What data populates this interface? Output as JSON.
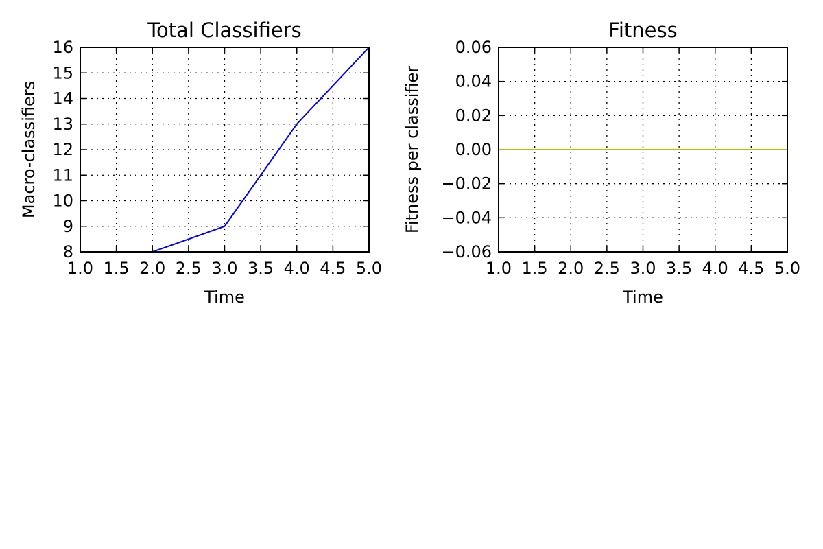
{
  "chart_data": [
    {
      "type": "line",
      "title": "Total Classifiers",
      "xlabel": "Time",
      "ylabel": "Macro-classifiers",
      "xlim": [
        1.0,
        5.0
      ],
      "ylim": [
        8,
        16
      ],
      "grid": true,
      "xticks": [
        "1.0",
        "1.5",
        "2.0",
        "2.5",
        "3.0",
        "3.5",
        "4.0",
        "4.5",
        "5.0"
      ],
      "yticks": [
        "8",
        "9",
        "10",
        "11",
        "12",
        "13",
        "14",
        "15",
        "16"
      ],
      "series": [
        {
          "color": "#0000ff",
          "x": [
            1,
            2,
            3,
            4,
            5
          ],
          "y": [
            8,
            8,
            9,
            13,
            16
          ]
        }
      ]
    },
    {
      "type": "line",
      "title": "Fitness",
      "xlabel": "Time",
      "ylabel": "Fitness per classifier",
      "xlim": [
        1.0,
        5.0
      ],
      "ylim": [
        -0.06,
        0.06
      ],
      "grid": true,
      "xticks": [
        "1.0",
        "1.5",
        "2.0",
        "2.5",
        "3.0",
        "3.5",
        "4.0",
        "4.5",
        "5.0"
      ],
      "yticks": [
        "−0.06",
        "−0.04",
        "−0.02",
        "0.00",
        "0.02",
        "0.04",
        "0.06"
      ],
      "series": [
        {
          "color": "#bfbf00",
          "x": [
            1,
            2,
            3,
            4,
            5
          ],
          "y": [
            0,
            0,
            0,
            0,
            0
          ]
        }
      ]
    }
  ]
}
